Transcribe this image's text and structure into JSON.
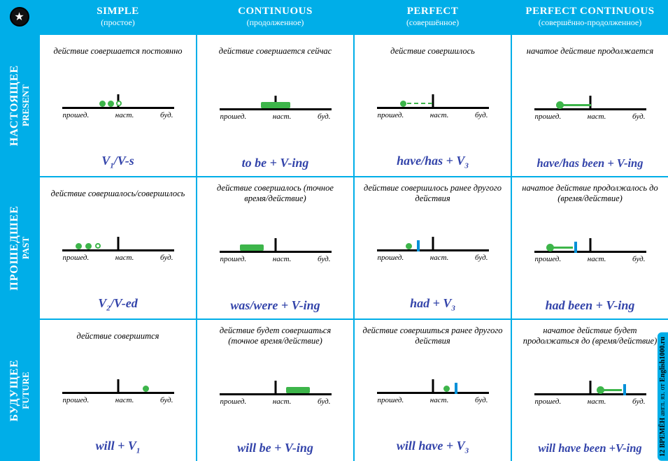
{
  "colors": {
    "bg": "#00aee8",
    "cell_bg": "#ffffff",
    "formula": "#3344aa",
    "green": "#3db54a",
    "blue": "#0090d8",
    "black": "#000000"
  },
  "timeline_labels": {
    "past": "прошед.",
    "now": "наст.",
    "future": "буд."
  },
  "columns": [
    {
      "en": "SIMPLE",
      "ru": "(простое)"
    },
    {
      "en": "CONTINUOUS",
      "ru": "(продолженное)"
    },
    {
      "en": "PERFECT",
      "ru": "(совершённое)"
    },
    {
      "en": "PERFECT CONTINUOUS",
      "ru": "(совершённо-продолженное)"
    }
  ],
  "rows": [
    {
      "ru": "НАСТОЯЩЕЕ",
      "en": "PRESENT"
    },
    {
      "ru": "ПРОШЕДШЕЕ",
      "en": "PAST"
    },
    {
      "ru": "БУДУЩЕЕ",
      "en": "FUTURE"
    }
  ],
  "cells": {
    "present_simple": {
      "desc": "действие совершается постоянно",
      "formula_html": "V<span class='sub'>1</span>/V-s"
    },
    "present_continuous": {
      "desc": "действие совершается сейчас",
      "formula_html": "to be + V-ing"
    },
    "present_perfect": {
      "desc": "действие совершилось",
      "formula_html": "have/has + V<span class='sub'>3</span>"
    },
    "present_perfcont": {
      "desc": "начатое действие продолжается",
      "formula_html": "have/has been + V-ing"
    },
    "past_simple": {
      "desc": "действие совершалось/совершилось",
      "formula_html": "V<span class='sub'>2</span>/V-ed"
    },
    "past_continuous": {
      "desc": "действие совершалось (точное время/действие)",
      "formula_html": "was/were + V-ing"
    },
    "past_perfect": {
      "desc": "действие совершилось ранее другого действия",
      "formula_html": "had + V<span class='sub'>3</span>"
    },
    "past_perfcont": {
      "desc": "начатое действие продолжалось до (время/действие)",
      "formula_html": "had been + V-ing"
    },
    "future_simple": {
      "desc": "действие совершится",
      "formula_html": "will + V<span class='sub'>1</span>"
    },
    "future_continuous": {
      "desc": "действие будет совершаться (точное время/действие)",
      "formula_html": "will be + V-ing"
    },
    "future_perfect": {
      "desc": "действие совершиться ранее другого действия",
      "formula_html": "will have + V<span class='sub'>3</span>"
    },
    "future_perfcont": {
      "desc": "начатое действие будет продолжаться до (время/действие)",
      "formula_html": "will have been +V-ing"
    }
  },
  "side_label": {
    "prefix": "12 ВРЕМЁН",
    "mid": "англ. яз. от",
    "site": "English1000.ru"
  }
}
